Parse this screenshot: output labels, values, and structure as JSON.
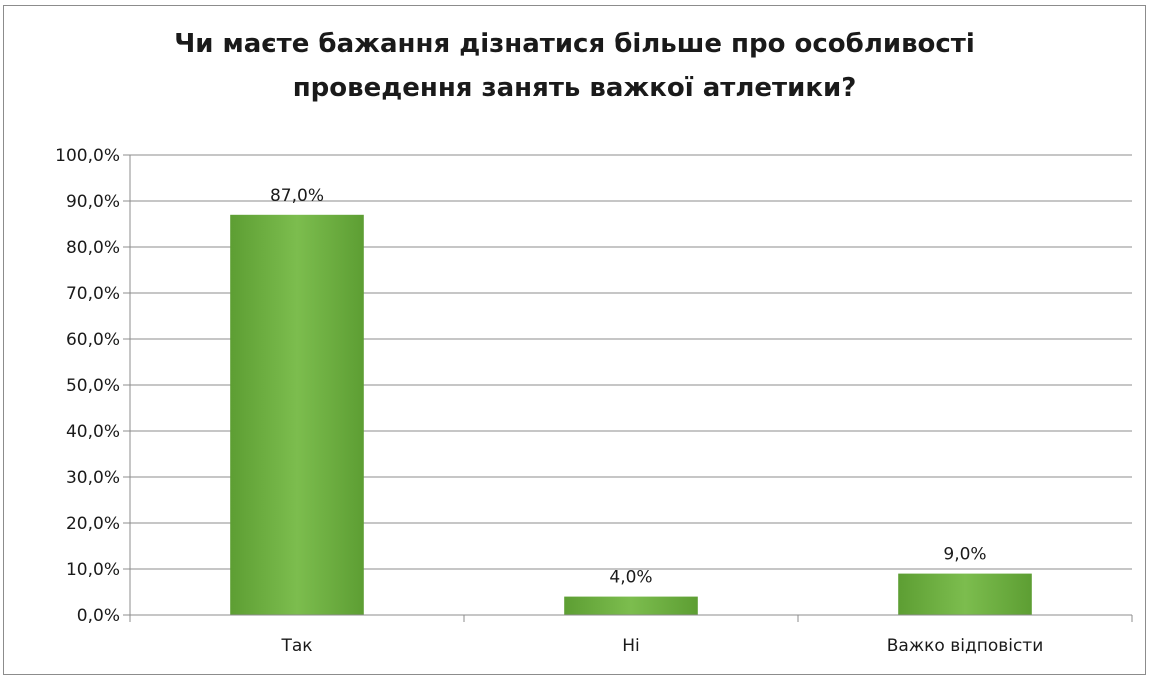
{
  "chart_data": {
    "type": "bar",
    "title": "Чи маєте бажання дізнатися більше про особливості проведення занять важкої атлетики?",
    "title_lines": [
      "Чи маєте бажання дізнатися більше про особливості",
      "проведення занять важкої атлетики?"
    ],
    "categories": [
      "Так",
      "Ні",
      "Важко відповісти"
    ],
    "values": [
      87.0,
      4.0,
      9.0
    ],
    "data_labels": [
      "87,0%",
      "4,0%",
      "9,0%"
    ],
    "ylim": [
      0,
      100
    ],
    "yticks": [
      0,
      10,
      20,
      30,
      40,
      50,
      60,
      70,
      80,
      90,
      100
    ],
    "ytick_labels": [
      "0,0%",
      "10,0%",
      "20,0%",
      "30,0%",
      "40,0%",
      "50,0%",
      "60,0%",
      "70,0%",
      "80,0%",
      "90,0%",
      "100,0%"
    ],
    "xlabel": "",
    "ylabel": "",
    "grid": true,
    "legend": false,
    "bar_color": "#6aac3e",
    "bar_color_light": "#7dbd4f"
  }
}
